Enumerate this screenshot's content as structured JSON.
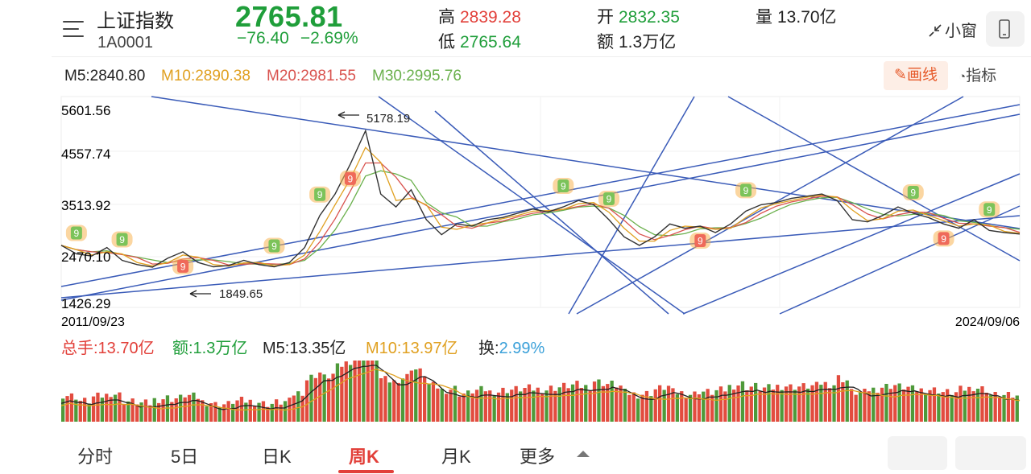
{
  "header": {
    "index_name": "上证指数",
    "index_code": "1A0001",
    "price": "2765.81",
    "change": "−76.40",
    "change_pct": "−2.69%",
    "high_label": "高",
    "high_value": "2839.28",
    "low_label": "低",
    "low_value": "2765.64",
    "open_label": "开",
    "open_value": "2832.35",
    "amount_label": "额",
    "amount_value": "1.3万亿",
    "volume_label": "量",
    "volume_value": "13.70亿",
    "mini_window": "小窗",
    "menu_icon": "menu-icon",
    "phone_icon": "phone-icon"
  },
  "ma": {
    "m5": "M5:2840.80",
    "m10": "M10:2890.38",
    "m20": "M20:2981.55",
    "m30": "M30:2995.76",
    "draw_label": "画线",
    "indicator_label": "指标",
    "colors": {
      "m5": "#222222",
      "m10": "#e0a020",
      "m20": "#d9534f",
      "m30": "#6ab04c"
    }
  },
  "chart": {
    "y_labels": [
      "5601.56",
      "4557.74",
      "3513.92",
      "2470.10",
      "1426.29"
    ],
    "annot_high": "5178.19",
    "annot_low": "1849.65",
    "start_date": "2011/09/23",
    "end_date": "2024/09/06",
    "badge": "9"
  },
  "volume": {
    "total_label": "总手:13.70亿",
    "amount_label": "额:1.3万亿",
    "m5": "M5:13.35亿",
    "m10": "M10:13.97亿",
    "turnover_label": "换:",
    "turnover_value": "2.99%"
  },
  "tabs": {
    "items": [
      "分时",
      "5日",
      "日K",
      "周K",
      "月K",
      "更多"
    ],
    "active": "周K"
  },
  "chart_data": {
    "type": "line",
    "title": "",
    "x_range": [
      "2011/09/23",
      "2024/09/06"
    ],
    "ylim": [
      1426.29,
      5601.56
    ],
    "y_ticks": [
      5601.56,
      4557.74,
      3513.92,
      2470.1,
      1426.29
    ],
    "annotations": [
      {
        "label": "5178.19",
        "kind": "high"
      },
      {
        "label": "1849.65",
        "kind": "low"
      }
    ],
    "series": [
      {
        "values": [
          2500,
          2300,
          2250,
          2450,
          2150,
          2050,
          1990,
          2200,
          2350,
          2100,
          2000,
          2030,
          2150,
          2050,
          2000,
          2100,
          2450,
          3200,
          3700,
          4400,
          5178,
          3700,
          3400,
          3800,
          3100,
          2750,
          3000,
          2950,
          3100,
          3150,
          3250,
          3350,
          3280,
          3400,
          3550,
          3450,
          3100,
          2700,
          2500,
          2700,
          3000,
          2900,
          2950,
          2800,
          3000,
          3300,
          3450,
          3500,
          3600,
          3650,
          3700,
          3550,
          3100,
          3050,
          3200,
          3400,
          3250,
          3150,
          3000,
          2900,
          3100,
          2850,
          2800,
          2765
        ]
      }
    ],
    "grid": true
  }
}
